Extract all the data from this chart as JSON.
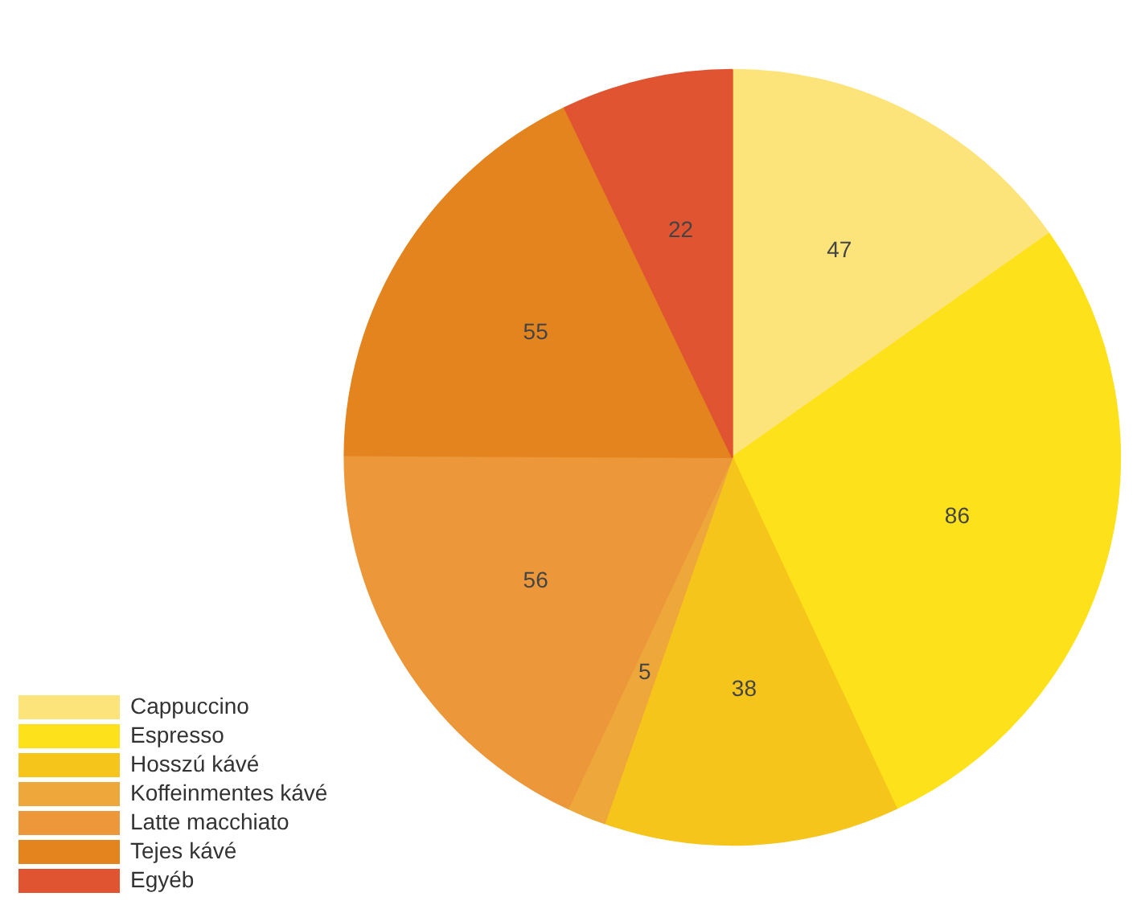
{
  "chart_data": {
    "type": "pie",
    "categories": [
      "Cappuccino",
      "Espresso",
      "Hosszú kávé",
      "Koffeinmentes kávé",
      "Latte macchiato",
      "Tejes kávé",
      "Egyéb"
    ],
    "values": [
      47,
      86,
      38,
      5,
      56,
      55,
      22
    ],
    "colors": [
      "#fde47a",
      "#fde11a",
      "#f6c51c",
      "#eea73a",
      "#eb973a",
      "#e3841e",
      "#e05432"
    ],
    "data_labels": true,
    "legend": "bottom left"
  }
}
